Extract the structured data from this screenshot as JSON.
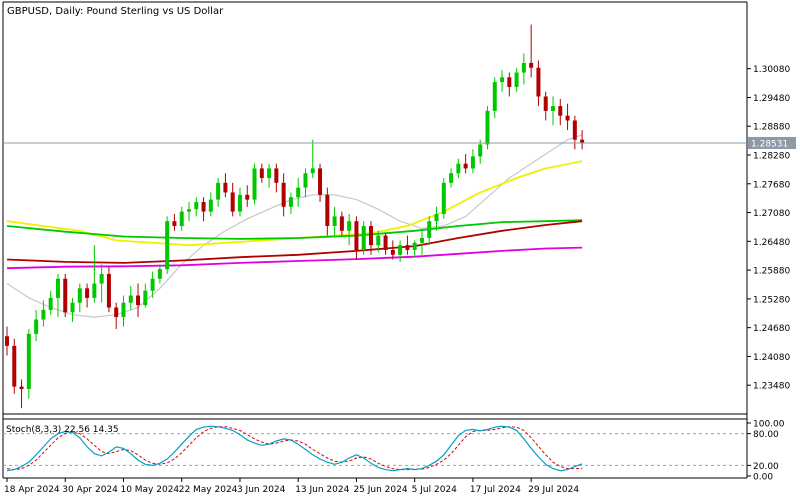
{
  "chart_data": {
    "type": "candlestick",
    "title": "GBPUSD, Daily:  Pound Sterling vs US Dollar",
    "symbol": "GBPUSD",
    "timeframe": "Daily",
    "description": "Pound Sterling vs US Dollar",
    "current_price": 1.28531,
    "current_price_label": "1.28531",
    "colors": {
      "bull": "#00c800",
      "bear": "#b00000",
      "sma_fast": "#c8c8c8",
      "sma_mid": "#f0f000",
      "sma_green": "#00c800",
      "sma_red": "#b00000",
      "sma_magenta": "#e000e0",
      "stoch_main": "#00a0c8",
      "stoch_signal": "#e00000"
    },
    "price_axis": {
      "ylim": [
        1.229,
        1.3145
      ],
      "ticks": [
        {
          "value": 1.2348,
          "label": "1.23480"
        },
        {
          "value": 1.2408,
          "label": "1.24080"
        },
        {
          "value": 1.2468,
          "label": "1.24680"
        },
        {
          "value": 1.2528,
          "label": "1.25280"
        },
        {
          "value": 1.2588,
          "label": "1.25880"
        },
        {
          "value": 1.2648,
          "label": "1.26480"
        },
        {
          "value": 1.2708,
          "label": "1.27080"
        },
        {
          "value": 1.2768,
          "label": "1.27680"
        },
        {
          "value": 1.2828,
          "label": "1.28280"
        },
        {
          "value": 1.2888,
          "label": "1.28880"
        },
        {
          "value": 1.2948,
          "label": "1.29480"
        },
        {
          "value": 1.3008,
          "label": "1.30080"
        }
      ]
    },
    "x_axis": {
      "labels": [
        {
          "index": 0,
          "label": "18 Apr 2024"
        },
        {
          "index": 8,
          "label": "30 Apr 2024"
        },
        {
          "index": 16,
          "label": "10 May 2024"
        },
        {
          "index": 24,
          "label": "22 May 2024"
        },
        {
          "index": 32,
          "label": "3 Jun 2024"
        },
        {
          "index": 40,
          "label": "13 Jun 2024"
        },
        {
          "index": 48,
          "label": "25 Jun 2024"
        },
        {
          "index": 56,
          "label": "5 Jul 2024"
        },
        {
          "index": 64,
          "label": "17 Jul 2024"
        },
        {
          "index": 72,
          "label": "29 Jul 2024"
        }
      ]
    },
    "candles": [
      {
        "o": 1.245,
        "h": 1.247,
        "l": 1.241,
        "c": 1.243
      },
      {
        "o": 1.243,
        "h": 1.2445,
        "l": 1.233,
        "c": 1.2345
      },
      {
        "o": 1.2345,
        "h": 1.236,
        "l": 1.23,
        "c": 1.234
      },
      {
        "o": 1.234,
        "h": 1.2465,
        "l": 1.232,
        "c": 1.2455
      },
      {
        "o": 1.2455,
        "h": 1.2505,
        "l": 1.244,
        "c": 1.2485
      },
      {
        "o": 1.2485,
        "h": 1.2525,
        "l": 1.247,
        "c": 1.2505
      },
      {
        "o": 1.2505,
        "h": 1.2545,
        "l": 1.2495,
        "c": 1.253
      },
      {
        "o": 1.253,
        "h": 1.258,
        "l": 1.249,
        "c": 1.257
      },
      {
        "o": 1.257,
        "h": 1.258,
        "l": 1.249,
        "c": 1.25
      },
      {
        "o": 1.25,
        "h": 1.253,
        "l": 1.248,
        "c": 1.252
      },
      {
        "o": 1.252,
        "h": 1.256,
        "l": 1.25,
        "c": 1.255
      },
      {
        "o": 1.255,
        "h": 1.256,
        "l": 1.251,
        "c": 1.253
      },
      {
        "o": 1.253,
        "h": 1.264,
        "l": 1.252,
        "c": 1.256
      },
      {
        "o": 1.256,
        "h": 1.26,
        "l": 1.252,
        "c": 1.258
      },
      {
        "o": 1.258,
        "h": 1.2595,
        "l": 1.25,
        "c": 1.251
      },
      {
        "o": 1.251,
        "h": 1.252,
        "l": 1.2465,
        "c": 1.249
      },
      {
        "o": 1.249,
        "h": 1.2535,
        "l": 1.247,
        "c": 1.252
      },
      {
        "o": 1.252,
        "h": 1.2555,
        "l": 1.2505,
        "c": 1.2535
      },
      {
        "o": 1.2535,
        "h": 1.256,
        "l": 1.249,
        "c": 1.2515
      },
      {
        "o": 1.2515,
        "h": 1.256,
        "l": 1.251,
        "c": 1.2545
      },
      {
        "o": 1.2545,
        "h": 1.2585,
        "l": 1.253,
        "c": 1.257
      },
      {
        "o": 1.257,
        "h": 1.26,
        "l": 1.256,
        "c": 1.259
      },
      {
        "o": 1.259,
        "h": 1.27,
        "l": 1.258,
        "c": 1.269
      },
      {
        "o": 1.269,
        "h": 1.2705,
        "l": 1.267,
        "c": 1.268
      },
      {
        "o": 1.268,
        "h": 1.272,
        "l": 1.267,
        "c": 1.271
      },
      {
        "o": 1.271,
        "h": 1.273,
        "l": 1.269,
        "c": 1.2715
      },
      {
        "o": 1.2715,
        "h": 1.274,
        "l": 1.27,
        "c": 1.273
      },
      {
        "o": 1.273,
        "h": 1.274,
        "l": 1.269,
        "c": 1.271
      },
      {
        "o": 1.271,
        "h": 1.275,
        "l": 1.27,
        "c": 1.2735
      },
      {
        "o": 1.2735,
        "h": 1.278,
        "l": 1.272,
        "c": 1.277
      },
      {
        "o": 1.277,
        "h": 1.279,
        "l": 1.274,
        "c": 1.275
      },
      {
        "o": 1.275,
        "h": 1.277,
        "l": 1.27,
        "c": 1.271
      },
      {
        "o": 1.271,
        "h": 1.276,
        "l": 1.27,
        "c": 1.2745
      },
      {
        "o": 1.2745,
        "h": 1.2765,
        "l": 1.272,
        "c": 1.2735
      },
      {
        "o": 1.2735,
        "h": 1.281,
        "l": 1.2725,
        "c": 1.28
      },
      {
        "o": 1.28,
        "h": 1.281,
        "l": 1.277,
        "c": 1.278
      },
      {
        "o": 1.278,
        "h": 1.281,
        "l": 1.276,
        "c": 1.28
      },
      {
        "o": 1.28,
        "h": 1.281,
        "l": 1.275,
        "c": 1.277
      },
      {
        "o": 1.277,
        "h": 1.279,
        "l": 1.27,
        "c": 1.272
      },
      {
        "o": 1.272,
        "h": 1.275,
        "l": 1.2705,
        "c": 1.274
      },
      {
        "o": 1.274,
        "h": 1.278,
        "l": 1.272,
        "c": 1.276
      },
      {
        "o": 1.276,
        "h": 1.28,
        "l": 1.274,
        "c": 1.279
      },
      {
        "o": 1.279,
        "h": 1.286,
        "l": 1.278,
        "c": 1.28
      },
      {
        "o": 1.28,
        "h": 1.281,
        "l": 1.273,
        "c": 1.2745
      },
      {
        "o": 1.2745,
        "h": 1.276,
        "l": 1.266,
        "c": 1.268
      },
      {
        "o": 1.268,
        "h": 1.272,
        "l": 1.266,
        "c": 1.27
      },
      {
        "o": 1.27,
        "h": 1.271,
        "l": 1.266,
        "c": 1.267
      },
      {
        "o": 1.267,
        "h": 1.2705,
        "l": 1.264,
        "c": 1.269
      },
      {
        "o": 1.269,
        "h": 1.27,
        "l": 1.261,
        "c": 1.263
      },
      {
        "o": 1.263,
        "h": 1.269,
        "l": 1.262,
        "c": 1.268
      },
      {
        "o": 1.268,
        "h": 1.269,
        "l": 1.262,
        "c": 1.264
      },
      {
        "o": 1.264,
        "h": 1.267,
        "l": 1.2625,
        "c": 1.266
      },
      {
        "o": 1.266,
        "h": 1.2665,
        "l": 1.262,
        "c": 1.263
      },
      {
        "o": 1.263,
        "h": 1.265,
        "l": 1.261,
        "c": 1.262
      },
      {
        "o": 1.262,
        "h": 1.265,
        "l": 1.2605,
        "c": 1.264
      },
      {
        "o": 1.264,
        "h": 1.266,
        "l": 1.262,
        "c": 1.263
      },
      {
        "o": 1.263,
        "h": 1.265,
        "l": 1.2615,
        "c": 1.2645
      },
      {
        "o": 1.2645,
        "h": 1.267,
        "l": 1.262,
        "c": 1.2655
      },
      {
        "o": 1.2655,
        "h": 1.27,
        "l": 1.264,
        "c": 1.269
      },
      {
        "o": 1.269,
        "h": 1.272,
        "l": 1.267,
        "c": 1.2705
      },
      {
        "o": 1.2705,
        "h": 1.278,
        "l": 1.2695,
        "c": 1.277
      },
      {
        "o": 1.277,
        "h": 1.28,
        "l": 1.276,
        "c": 1.279
      },
      {
        "o": 1.279,
        "h": 1.282,
        "l": 1.278,
        "c": 1.281
      },
      {
        "o": 1.281,
        "h": 1.283,
        "l": 1.279,
        "c": 1.28
      },
      {
        "o": 1.28,
        "h": 1.284,
        "l": 1.279,
        "c": 1.2825
      },
      {
        "o": 1.2825,
        "h": 1.286,
        "l": 1.281,
        "c": 1.285
      },
      {
        "o": 1.285,
        "h": 1.293,
        "l": 1.284,
        "c": 1.292
      },
      {
        "o": 1.292,
        "h": 1.299,
        "l": 1.2905,
        "c": 1.298
      },
      {
        "o": 1.298,
        "h": 1.3005,
        "l": 1.296,
        "c": 1.299
      },
      {
        "o": 1.299,
        "h": 1.3,
        "l": 1.295,
        "c": 1.297
      },
      {
        "o": 1.297,
        "h": 1.301,
        "l": 1.296,
        "c": 1.3
      },
      {
        "o": 1.3,
        "h": 1.304,
        "l": 1.2975,
        "c": 1.302
      },
      {
        "o": 1.302,
        "h": 1.31,
        "l": 1.299,
        "c": 1.301
      },
      {
        "o": 1.301,
        "h": 1.3025,
        "l": 1.293,
        "c": 1.295
      },
      {
        "o": 1.295,
        "h": 1.296,
        "l": 1.29,
        "c": 1.292
      },
      {
        "o": 1.292,
        "h": 1.295,
        "l": 1.289,
        "c": 1.293
      },
      {
        "o": 1.293,
        "h": 1.2945,
        "l": 1.289,
        "c": 1.291
      },
      {
        "o": 1.291,
        "h": 1.2935,
        "l": 1.288,
        "c": 1.29
      },
      {
        "o": 1.29,
        "h": 1.291,
        "l": 1.284,
        "c": 1.286
      },
      {
        "o": 1.286,
        "h": 1.288,
        "l": 1.284,
        "c": 1.2853
      }
    ],
    "moving_averages": [
      {
        "id": "sma_fast",
        "color": "#c8c8c8",
        "width": 1.2,
        "points": [
          [
            0,
            1.256
          ],
          [
            3,
            1.253
          ],
          [
            6,
            1.251
          ],
          [
            9,
            1.2495
          ],
          [
            12,
            1.249
          ],
          [
            15,
            1.2495
          ],
          [
            18,
            1.251
          ],
          [
            21,
            1.255
          ],
          [
            24,
            1.26
          ],
          [
            27,
            1.264
          ],
          [
            30,
            1.267
          ],
          [
            33,
            1.2695
          ],
          [
            36,
            1.2715
          ],
          [
            39,
            1.2735
          ],
          [
            42,
            1.2745
          ],
          [
            45,
            1.2745
          ],
          [
            48,
            1.2735
          ],
          [
            51,
            1.2715
          ],
          [
            54,
            1.269
          ],
          [
            57,
            1.2675
          ],
          [
            60,
            1.268
          ],
          [
            63,
            1.27
          ],
          [
            66,
            1.274
          ],
          [
            69,
            1.278
          ],
          [
            72,
            1.281
          ],
          [
            75,
            1.284
          ],
          [
            77,
            1.286
          ],
          [
            79,
            1.287
          ]
        ]
      },
      {
        "id": "sma_mid",
        "color": "#f0f000",
        "width": 1.8,
        "points": [
          [
            0,
            1.269
          ],
          [
            5,
            1.268
          ],
          [
            10,
            1.267
          ],
          [
            15,
            1.265
          ],
          [
            20,
            1.2645
          ],
          [
            25,
            1.264
          ],
          [
            30,
            1.2645
          ],
          [
            35,
            1.265
          ],
          [
            40,
            1.2655
          ],
          [
            45,
            1.266
          ],
          [
            50,
            1.2665
          ],
          [
            55,
            1.268
          ],
          [
            60,
            1.271
          ],
          [
            65,
            1.275
          ],
          [
            70,
            1.278
          ],
          [
            74,
            1.28
          ],
          [
            79,
            1.2815
          ]
        ]
      },
      {
        "id": "sma_green",
        "color": "#00c800",
        "width": 1.8,
        "points": [
          [
            0,
            1.268
          ],
          [
            8,
            1.2668
          ],
          [
            16,
            1.2658
          ],
          [
            24,
            1.2655
          ],
          [
            32,
            1.2653
          ],
          [
            40,
            1.2655
          ],
          [
            48,
            1.266
          ],
          [
            56,
            1.267
          ],
          [
            62,
            1.268
          ],
          [
            68,
            1.2688
          ],
          [
            74,
            1.269
          ],
          [
            79,
            1.2692
          ]
        ]
      },
      {
        "id": "sma_red",
        "color": "#b00000",
        "width": 1.8,
        "points": [
          [
            0,
            1.261
          ],
          [
            8,
            1.2605
          ],
          [
            16,
            1.2603
          ],
          [
            24,
            1.2608
          ],
          [
            32,
            1.2615
          ],
          [
            40,
            1.262
          ],
          [
            48,
            1.2628
          ],
          [
            56,
            1.2638
          ],
          [
            62,
            1.2655
          ],
          [
            68,
            1.267
          ],
          [
            74,
            1.2682
          ],
          [
            79,
            1.269
          ]
        ]
      },
      {
        "id": "sma_magenta",
        "color": "#e000e0",
        "width": 1.8,
        "points": [
          [
            0,
            1.2592
          ],
          [
            8,
            1.2595
          ],
          [
            16,
            1.2596
          ],
          [
            24,
            1.2598
          ],
          [
            32,
            1.2603
          ],
          [
            40,
            1.2607
          ],
          [
            48,
            1.2611
          ],
          [
            56,
            1.2616
          ],
          [
            62,
            1.2622
          ],
          [
            68,
            1.2628
          ],
          [
            74,
            1.2633
          ],
          [
            79,
            1.2635
          ]
        ]
      }
    ],
    "stochastic": {
      "label": "Stoch(8,3,3) 22.56 14.35",
      "levels": [
        80,
        20
      ],
      "axis_labels": [
        "100.00",
        "80.00",
        "20.00",
        "0.00"
      ],
      "main": [
        10,
        12,
        18,
        26,
        40,
        55,
        70,
        80,
        84,
        82,
        72,
        55,
        42,
        38,
        45,
        55,
        52,
        42,
        30,
        22,
        20,
        24,
        32,
        45,
        60,
        75,
        88,
        92,
        94,
        93,
        90,
        86,
        78,
        68,
        62,
        58,
        60,
        66,
        70,
        68,
        60,
        50,
        40,
        32,
        26,
        22,
        26,
        34,
        40,
        34,
        24,
        16,
        12,
        10,
        12,
        14,
        12,
        14,
        20,
        28,
        40,
        58,
        76,
        86,
        88,
        85,
        88,
        92,
        94,
        92,
        86,
        70,
        52,
        36,
        22,
        14,
        10,
        12,
        18,
        22.56
      ],
      "signal": [
        14,
        12,
        14,
        20,
        30,
        44,
        58,
        72,
        80,
        84,
        80,
        70,
        58,
        46,
        42,
        46,
        50,
        48,
        40,
        30,
        24,
        22,
        25,
        32,
        44,
        58,
        72,
        84,
        90,
        93,
        93,
        90,
        86,
        78,
        70,
        64,
        60,
        62,
        66,
        68,
        66,
        60,
        50,
        42,
        34,
        28,
        26,
        28,
        34,
        36,
        32,
        24,
        18,
        14,
        12,
        12,
        13,
        13,
        16,
        22,
        30,
        42,
        58,
        74,
        84,
        86,
        86,
        88,
        91,
        93,
        92,
        86,
        72,
        56,
        40,
        26,
        18,
        14,
        14,
        14.35
      ]
    }
  }
}
